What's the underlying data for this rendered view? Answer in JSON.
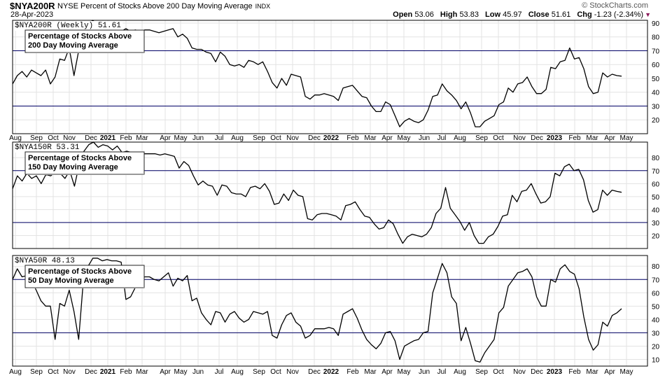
{
  "header": {
    "symbol": "$NYA200R",
    "description": "NYSE Percent of Stocks Above 200 Day Moving Average",
    "exchange": "INDX",
    "date": "28-Apr-2023",
    "brand": "© StockCharts.com",
    "open_label": "Open",
    "open": "53.06",
    "high_label": "High",
    "high": "53.83",
    "low_label": "Low",
    "low": "45.97",
    "close_label": "Close",
    "close": "51.61",
    "chg_label": "Chg",
    "chg": "-1.23 (-2.34%)",
    "arrow": "▼"
  },
  "colors": {
    "line": "#000000",
    "ref_line": "#000066",
    "grid": "#e3e3e3",
    "axis": "#000000"
  },
  "x_axis": {
    "tick_labels": [
      "Aug",
      "Sep",
      "Oct",
      "Nov",
      "Dec",
      "2021",
      "Feb",
      "Mar",
      "Apr",
      "May",
      "Jun",
      "Jul",
      "Aug",
      "Sep",
      "Oct",
      "Nov",
      "Dec",
      "2022",
      "Feb",
      "Mar",
      "Apr",
      "May",
      "Jun",
      "Jul",
      "Aug",
      "Sep",
      "Oct",
      "Nov",
      "Dec",
      "2023",
      "Feb",
      "Mar",
      "Apr",
      "May"
    ],
    "year_labels": [
      "2021",
      "2022",
      "2023"
    ]
  },
  "chart_data": [
    {
      "type": "line",
      "panel_label": "$NYA200R (Weekly) 51.61",
      "annotation": [
        "Percentage of Stocks Above",
        "200 Day Moving Average"
      ],
      "ylim": [
        10,
        92
      ],
      "yticks": [
        20,
        30,
        40,
        50,
        60,
        70,
        80,
        90
      ],
      "ref_lines": [
        70,
        30
      ],
      "values": [
        46,
        52,
        55,
        51,
        56,
        54,
        52,
        56,
        46,
        51,
        64,
        63,
        72,
        52,
        70,
        84,
        89,
        92,
        88,
        91,
        90,
        86,
        91,
        84,
        86,
        84,
        85,
        84,
        85,
        85,
        84,
        83,
        84,
        85,
        86,
        80,
        82,
        79,
        72,
        71,
        71,
        69,
        68,
        62,
        69,
        66,
        60,
        59,
        60,
        58,
        63,
        62,
        60,
        62,
        55,
        47,
        43,
        50,
        45,
        53,
        52,
        51,
        37,
        35,
        38,
        38,
        39,
        38,
        37,
        34,
        43,
        44,
        45,
        41,
        37,
        36,
        30,
        26,
        26,
        33,
        31,
        23,
        15,
        19,
        21,
        19,
        18,
        20,
        27,
        37,
        38,
        46,
        41,
        38,
        34,
        28,
        33,
        25,
        15,
        15,
        19,
        21,
        23,
        31,
        33,
        43,
        40,
        46,
        47,
        51,
        44,
        39,
        39,
        42,
        58,
        57,
        62,
        63,
        72,
        64,
        65,
        57,
        44,
        39,
        40,
        54,
        51,
        53,
        52,
        51.6
      ]
    },
    {
      "type": "line",
      "panel_label": "$NYA150R 53.31",
      "annotation": [
        "Percentage of Stocks Above",
        "150 Day Moving Average"
      ],
      "ylim": [
        10,
        92
      ],
      "yticks": [
        20,
        30,
        40,
        50,
        60,
        70,
        80
      ],
      "ref_lines": [
        70,
        30
      ],
      "values": [
        56,
        66,
        62,
        68,
        64,
        66,
        60,
        67,
        66,
        69,
        68,
        64,
        70,
        58,
        75,
        85,
        90,
        92,
        88,
        90,
        89,
        86,
        89,
        84,
        85,
        84,
        84,
        83,
        83,
        83,
        83,
        82,
        83,
        82,
        81,
        72,
        77,
        74,
        66,
        59,
        62,
        59,
        58,
        51,
        59,
        58,
        53,
        52,
        52,
        50,
        57,
        58,
        56,
        60,
        54,
        44,
        45,
        52,
        47,
        55,
        51,
        50,
        33,
        32,
        36,
        37,
        37,
        36,
        35,
        32,
        43,
        44,
        46,
        40,
        35,
        34,
        29,
        25,
        26,
        32,
        29,
        21,
        14,
        19,
        21,
        20,
        19,
        21,
        26,
        37,
        41,
        57,
        41,
        36,
        31,
        24,
        30,
        20,
        14,
        14,
        19,
        21,
        27,
        35,
        36,
        51,
        46,
        54,
        55,
        60,
        52,
        45,
        46,
        50,
        68,
        66,
        73,
        75,
        70,
        71,
        63,
        47,
        38,
        40,
        55,
        51,
        55,
        54,
        53.3
      ]
    },
    {
      "type": "line",
      "panel_label": "$NYA50R 48.13",
      "annotation": [
        "Percentage of Stocks Above",
        "50 Day Moving Average"
      ],
      "ylim": [
        5,
        88
      ],
      "yticks": [
        10,
        20,
        30,
        40,
        50,
        60,
        70,
        80
      ],
      "ref_lines": [
        70,
        30
      ],
      "values": [
        70,
        78,
        72,
        73,
        69,
        62,
        54,
        50,
        50,
        25,
        52,
        50,
        62,
        46,
        25,
        70,
        80,
        86,
        86,
        84,
        85,
        84,
        84,
        83,
        55,
        57,
        64,
        70,
        72,
        72,
        70,
        69,
        72,
        75,
        65,
        71,
        69,
        73,
        54,
        56,
        45,
        40,
        36,
        46,
        45,
        38,
        44,
        46,
        41,
        38,
        40,
        46,
        45,
        44,
        46,
        28,
        26,
        36,
        43,
        45,
        38,
        35,
        26,
        28,
        33,
        33,
        33,
        34,
        33,
        28,
        44,
        46,
        48,
        41,
        32,
        25,
        21,
        18,
        22,
        30,
        31,
        24,
        10,
        20,
        22,
        24,
        25,
        30,
        31,
        60,
        71,
        82,
        75,
        57,
        52,
        24,
        34,
        22,
        9,
        8,
        15,
        20,
        25,
        45,
        49,
        65,
        70,
        75,
        76,
        78,
        72,
        57,
        50,
        50,
        70,
        68,
        78,
        81,
        76,
        74,
        63,
        42,
        25,
        17,
        21,
        38,
        35,
        43,
        45,
        48.1
      ]
    }
  ]
}
